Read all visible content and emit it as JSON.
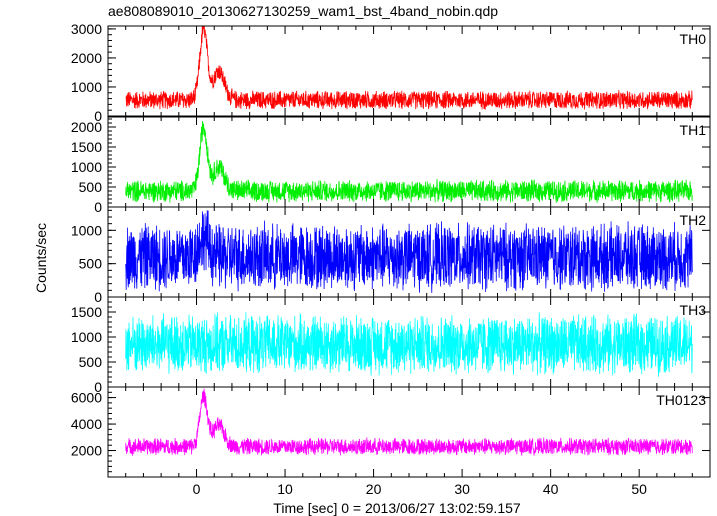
{
  "title": "ae808089010_20130627130259_wam1_bst_4band_nobin.qdp",
  "chart_data": {
    "type": "line",
    "title": "ae808089010_20130627130259_wam1_bst_4band_nobin.qdp",
    "xlabel": "Time [sec] 0 = 2013/06/27 13:02:59.157",
    "ylabel": "Counts/sec",
    "xlim": [
      -10,
      58
    ],
    "x_ticks": [
      0,
      10,
      20,
      30,
      40,
      50
    ],
    "x_ticklabels": [
      "0",
      "10",
      "20",
      "30",
      "40",
      "50"
    ],
    "x_data_range": [
      -8,
      56
    ],
    "grid": false,
    "panels": [
      {
        "name": "TH0",
        "color": "#ff0000",
        "ylim": [
          0,
          3100
        ],
        "yticks": [
          0,
          1000,
          2000,
          3000
        ],
        "baseline_mean": 550,
        "noise_amplitude": 350,
        "peaks": [
          {
            "t": 0.8,
            "height": 2400,
            "width": 0.6
          },
          {
            "t": 2.5,
            "height": 1000,
            "width": 0.9
          }
        ]
      },
      {
        "name": "TH1",
        "color": "#00ee00",
        "ylim": [
          0,
          2250
        ],
        "yticks": [
          0,
          500,
          1000,
          1500,
          2000
        ],
        "baseline_mean": 400,
        "noise_amplitude": 300,
        "peaks": [
          {
            "t": 0.8,
            "height": 1600,
            "width": 0.6
          },
          {
            "t": 2.5,
            "height": 600,
            "width": 0.9
          }
        ]
      },
      {
        "name": "TH2",
        "color": "#0000ff",
        "ylim": [
          0,
          1350
        ],
        "yticks": [
          0,
          500,
          1000
        ],
        "baseline_mean": 600,
        "noise_amplitude": 550,
        "peaks": [
          {
            "t": 0.8,
            "height": 300,
            "width": 0.8
          }
        ]
      },
      {
        "name": "TH3",
        "color": "#00ffff",
        "ylim": [
          0,
          1800
        ],
        "yticks": [
          0,
          500,
          1000,
          1500
        ],
        "baseline_mean": 850,
        "noise_amplitude": 650,
        "peaks": []
      },
      {
        "name": "TH0123",
        "color": "#ff00ff",
        "ylim": [
          0,
          6800
        ],
        "yticks": [
          2000,
          4000,
          6000
        ],
        "baseline_mean": 2300,
        "noise_amplitude": 700,
        "peaks": [
          {
            "t": 0.8,
            "height": 3800,
            "width": 0.6
          },
          {
            "t": 2.5,
            "height": 1600,
            "width": 0.9
          }
        ]
      }
    ]
  }
}
